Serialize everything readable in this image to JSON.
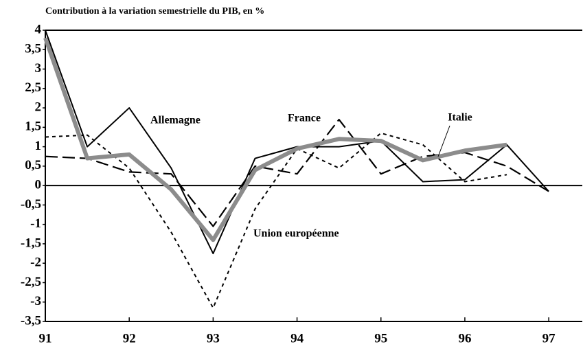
{
  "chart_data": {
    "type": "line",
    "title": "Contribution à la variation semestrielle du PIB, en %",
    "x": [
      91,
      91.5,
      92,
      92.5,
      93,
      93.5,
      94,
      94.5,
      95,
      95.5,
      96,
      96.5,
      97
    ],
    "series": [
      {
        "name": "Allemagne",
        "color": "#000000",
        "style": "solid",
        "values": [
          4,
          1.0,
          2.0,
          0.45,
          -1.75,
          0.7,
          1.0,
          1.0,
          1.15,
          0.1,
          0.15,
          1.05,
          -0.15
        ]
      },
      {
        "name": "France",
        "color": "#000000",
        "style": "dash",
        "values": [
          0.75,
          0.7,
          0.35,
          0.3,
          -1.05,
          0.5,
          0.3,
          1.7,
          0.3,
          0.75,
          0.85,
          0.5,
          -0.15
        ]
      },
      {
        "name": "Italie",
        "color": "#000000",
        "style": "dot",
        "values": [
          1.25,
          1.3,
          0.45,
          -1.2,
          -3.15,
          -0.6,
          0.95,
          0.45,
          1.35,
          1.05,
          0.1,
          0.28,
          null
        ]
      },
      {
        "name": "Union européenne",
        "color": "#8c8c8c",
        "style": "thick",
        "values": [
          3.8,
          0.7,
          0.8,
          -0.1,
          -1.4,
          0.4,
          0.95,
          1.2,
          1.15,
          0.65,
          0.9,
          1.05,
          null
        ]
      }
    ],
    "xlim": [
      91,
      97.4
    ],
    "xticks": [
      91,
      92,
      93,
      94,
      95,
      96,
      97
    ],
    "ylim": [
      -3.5,
      4
    ],
    "yticks": [
      {
        "value": -3.5,
        "label": "-3,5"
      },
      -3,
      {
        "value": -2.5,
        "label": "-2,5"
      },
      -2,
      {
        "value": -1.5,
        "label": "-1,5"
      },
      -1,
      {
        "value": -0.5,
        "label": "-0,5"
      },
      0,
      {
        "value": 0.5,
        "label": "0,5"
      },
      1,
      {
        "value": 1.5,
        "label": "1,5"
      },
      2,
      {
        "value": 2.5,
        "label": "2,5"
      },
      3,
      {
        "value": 3.5,
        "label": "3,5"
      },
      4
    ],
    "grid": false
  }
}
